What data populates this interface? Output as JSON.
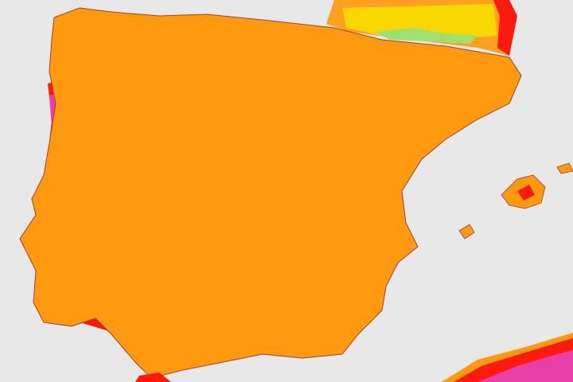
{
  "map": {
    "colors": {
      "sea": "#e8e8e8",
      "orange": "#ff9a10",
      "yellow": "#f8d800",
      "green": "#a0e070",
      "red": "#ff1a10",
      "magenta": "#e840a8",
      "dark_magenta": "#c24c8c",
      "border": "#7a2a20"
    }
  }
}
